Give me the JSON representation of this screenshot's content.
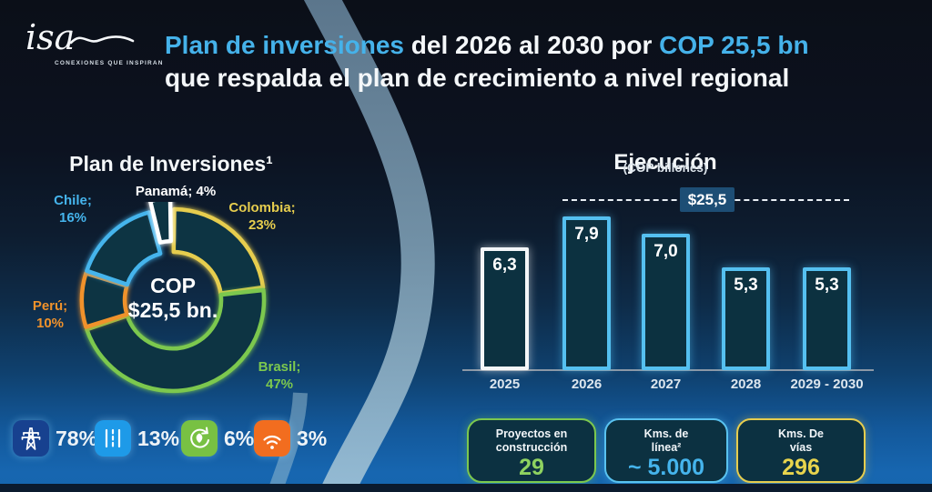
{
  "logo": {
    "name": "isa",
    "tagline": "CONEXIONES QUE INSPIRAN"
  },
  "title": {
    "segment1": "Plan de inversiones",
    "segment2": "del 2026 al 2030 por",
    "segment3": "COP 25,5 bn",
    "line2": "que respalda el plan de crecimiento a nivel regional",
    "accent_color": "#45b2ea"
  },
  "chart_data": [
    {
      "type": "pie",
      "title": "Plan de Inversiones¹",
      "center_label_line1": "COP",
      "center_label_line2": "$25,5 bn.",
      "segment_fill": "#0d3443",
      "legend_position": "around",
      "segments": [
        {
          "id": "colombia",
          "label": "Colombia;",
          "pct_label": "23%",
          "value": 23,
          "color": "#e6cd4e",
          "exploded": false
        },
        {
          "id": "brasil",
          "label": "Brasil;",
          "pct_label": "47%",
          "value": 47,
          "color": "#7cc84e",
          "exploded": false
        },
        {
          "id": "peru",
          "label": "Perú;",
          "pct_label": "10%",
          "value": 10,
          "color": "#f0922b",
          "exploded": false
        },
        {
          "id": "chile",
          "label": "Chile;",
          "pct_label": "16%",
          "value": 16,
          "color": "#45b4ec",
          "exploded": false
        },
        {
          "id": "panama",
          "label": "Panamá; 4%",
          "pct_label": "",
          "value": 4,
          "color": "#ffffff",
          "exploded": true
        }
      ]
    },
    {
      "type": "bar",
      "title": "Ejecución",
      "subtitle": "(COP billones)",
      "target_label": "$25,5",
      "target_value": 25.5,
      "categories": [
        "2025",
        "2026",
        "2027",
        "2028",
        "2029 - 2030"
      ],
      "values": [
        6.3,
        7.9,
        7.0,
        5.3,
        5.3
      ],
      "value_labels": [
        "6,3",
        "7,9",
        "7,0",
        "5,3",
        "5,3"
      ],
      "bar_styles": [
        "white",
        "blue",
        "blue",
        "blue",
        "blue"
      ],
      "bar_color": "#55c0f0",
      "bar_fill": "#0c3140",
      "grid": false
    }
  ],
  "sectors": {
    "items": [
      {
        "icon": "transmission-tower-icon",
        "bg": "#17418f",
        "pct": "78%"
      },
      {
        "icon": "road-icon",
        "bg": "#1e9ae8",
        "pct": "13%"
      },
      {
        "icon": "renewable-energy-icon",
        "bg": "#78c143",
        "pct": "6%"
      },
      {
        "icon": "wifi-icon",
        "bg": "#f26d1f",
        "pct": "3%"
      }
    ]
  },
  "cards": [
    {
      "line1": "Proyectos en",
      "line2": "construcción",
      "value": "29",
      "color": "#7cc84e",
      "value_color": "#8ed260"
    },
    {
      "line1": "Kms. de",
      "line2": "línea²",
      "value": "~ 5.000",
      "color": "#59c2f0",
      "value_color": "#45b4ec"
    },
    {
      "line1": "Kms. De",
      "line2": "vías",
      "value": "296",
      "color": "#e6cd4e",
      "value_color": "#e8d44d"
    }
  ]
}
